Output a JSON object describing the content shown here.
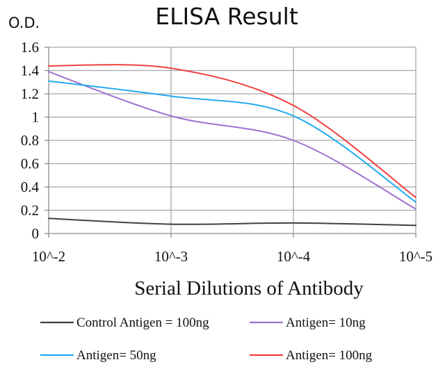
{
  "chart_data": {
    "type": "line",
    "title": "ELISA Result",
    "ylabel": "O.D.",
    "xlabel": "Serial Dilutions  of Antibody",
    "categories": [
      "10^-2",
      "10^-3",
      "10^-4",
      "10^-5"
    ],
    "yticks": [
      "0",
      "0.2",
      "0.4",
      "0.6",
      "0.8",
      "1",
      "1.2",
      "1.4",
      "1.6"
    ],
    "ylim": [
      0,
      1.6
    ],
    "grid": true,
    "legend_position": "bottom",
    "series": [
      {
        "name": "Control Antigen = 100ng",
        "color": "#404040",
        "values": [
          0.13,
          0.08,
          0.09,
          0.07
        ]
      },
      {
        "name": "Antigen= 10ng",
        "color": "#a070d0",
        "values": [
          1.39,
          1.01,
          0.8,
          0.21
        ]
      },
      {
        "name": "Antigen= 50ng",
        "color": "#22aaee",
        "values": [
          1.31,
          1.18,
          1.01,
          0.27
        ]
      },
      {
        "name": "Antigen= 100ng",
        "color": "#f04040",
        "values": [
          1.44,
          1.42,
          1.1,
          0.31
        ]
      }
    ]
  }
}
